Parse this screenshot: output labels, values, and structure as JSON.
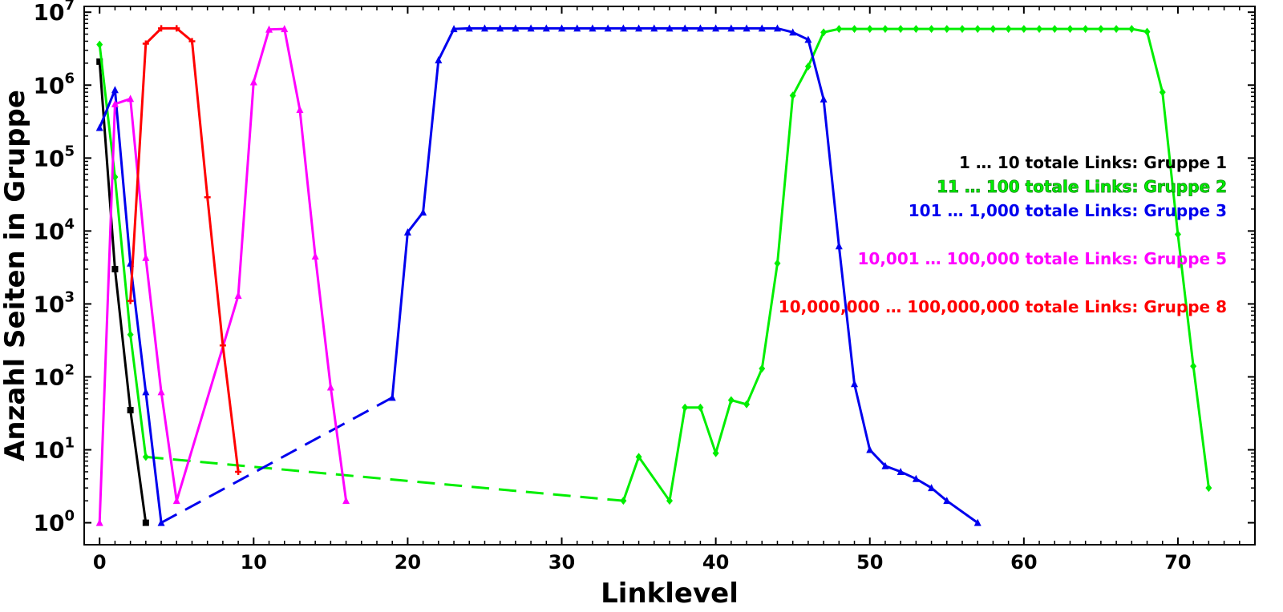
{
  "chart_data": {
    "type": "line",
    "title": "",
    "xlabel": "Linklevel",
    "ylabel": "Anzahl Seiten in Gruppe",
    "yscale": "log",
    "xlim": [
      -1,
      75
    ],
    "ylim": [
      0.5,
      12000000
    ],
    "grid": false,
    "legend_placement": "right",
    "x_ticks": [
      {
        "value": 0,
        "label": "0"
      },
      {
        "value": 10,
        "label": "10"
      },
      {
        "value": 20,
        "label": "20"
      },
      {
        "value": 30,
        "label": "30"
      },
      {
        "value": 40,
        "label": "40"
      },
      {
        "value": 50,
        "label": "50"
      },
      {
        "value": 60,
        "label": "60"
      },
      {
        "value": 70,
        "label": "70"
      }
    ],
    "y_ticks": [
      {
        "value": 1,
        "base": "10",
        "exp": "0"
      },
      {
        "value": 10,
        "base": "10",
        "exp": "1"
      },
      {
        "value": 100,
        "base": "10",
        "exp": "2"
      },
      {
        "value": 1000,
        "base": "10",
        "exp": "3"
      },
      {
        "value": 10000,
        "base": "10",
        "exp": "4"
      },
      {
        "value": 100000,
        "base": "10",
        "exp": "5"
      },
      {
        "value": 1000000,
        "base": "10",
        "exp": "6"
      },
      {
        "value": 10000000,
        "base": "10",
        "exp": "7"
      }
    ],
    "series": [
      {
        "name": "1 … 10 totale Links: Gruppe 1",
        "color": "#000000",
        "marker": "square",
        "points": [
          [
            0,
            2100000
          ],
          [
            1,
            3000
          ],
          [
            2,
            35
          ],
          [
            3,
            1
          ]
        ],
        "gaps": []
      },
      {
        "name": "11 … 100 totale Links: Gruppe 2",
        "color": "#00ee00",
        "marker": "diamond",
        "points": [
          [
            0,
            3600000
          ],
          [
            1,
            55000
          ],
          [
            2,
            380
          ],
          [
            3,
            8
          ],
          [
            34,
            2
          ],
          [
            35,
            8
          ],
          [
            37,
            2
          ],
          [
            38,
            38
          ],
          [
            39,
            38
          ],
          [
            40,
            9
          ],
          [
            41,
            48
          ],
          [
            42,
            42
          ],
          [
            43,
            130
          ],
          [
            44,
            3600
          ],
          [
            45,
            720000
          ],
          [
            46,
            1800000
          ],
          [
            47,
            5300000
          ],
          [
            48,
            5900000
          ],
          [
            49,
            5900000
          ],
          [
            50,
            5900000
          ],
          [
            51,
            5900000
          ],
          [
            52,
            5900000
          ],
          [
            53,
            5900000
          ],
          [
            54,
            5900000
          ],
          [
            55,
            5900000
          ],
          [
            56,
            5900000
          ],
          [
            57,
            5900000
          ],
          [
            58,
            5900000
          ],
          [
            59,
            5900000
          ],
          [
            60,
            5900000
          ],
          [
            61,
            5900000
          ],
          [
            62,
            5900000
          ],
          [
            63,
            5900000
          ],
          [
            64,
            5900000
          ],
          [
            65,
            5900000
          ],
          [
            66,
            5900000
          ],
          [
            67,
            5900000
          ],
          [
            68,
            5400000
          ],
          [
            69,
            800000
          ],
          [
            70,
            9000
          ],
          [
            71,
            140
          ],
          [
            72,
            3
          ]
        ],
        "gaps": [
          [
            [
              3,
              8
            ],
            [
              34,
              2
            ]
          ]
        ]
      },
      {
        "name": "101 … 1,000 totale Links: Gruppe 3",
        "color": "#0000ee",
        "marker": "triangle",
        "points": [
          [
            0,
            260000
          ],
          [
            1,
            860000
          ],
          [
            2,
            3600
          ],
          [
            3,
            62
          ],
          [
            4,
            1
          ],
          [
            19,
            52
          ],
          [
            20,
            9600
          ],
          [
            21,
            18000
          ],
          [
            22,
            2200000
          ],
          [
            23,
            5900000
          ],
          [
            24,
            6000000
          ],
          [
            25,
            6000000
          ],
          [
            26,
            6000000
          ],
          [
            27,
            6000000
          ],
          [
            28,
            6000000
          ],
          [
            29,
            6000000
          ],
          [
            30,
            6000000
          ],
          [
            31,
            6000000
          ],
          [
            32,
            6000000
          ],
          [
            33,
            6000000
          ],
          [
            34,
            6000000
          ],
          [
            35,
            6000000
          ],
          [
            36,
            6000000
          ],
          [
            37,
            6000000
          ],
          [
            38,
            6000000
          ],
          [
            39,
            6000000
          ],
          [
            40,
            6000000
          ],
          [
            41,
            6000000
          ],
          [
            42,
            6000000
          ],
          [
            43,
            6000000
          ],
          [
            44,
            6000000
          ],
          [
            45,
            5300000
          ],
          [
            46,
            4200000
          ],
          [
            47,
            640000
          ],
          [
            48,
            6200
          ],
          [
            49,
            80
          ],
          [
            50,
            10
          ],
          [
            51,
            6
          ],
          [
            52,
            5
          ],
          [
            53,
            4
          ],
          [
            54,
            3
          ],
          [
            55,
            2
          ],
          [
            57,
            1
          ]
        ],
        "gaps": [
          [
            [
              4,
              1
            ],
            [
              19,
              52
            ]
          ]
        ]
      },
      {
        "name": "10,001 … 100,000 totale Links: Gruppe 5",
        "color": "#ff00ff",
        "marker": "triangle",
        "points": [
          [
            0,
            1
          ],
          [
            1,
            550000
          ],
          [
            2,
            650000
          ],
          [
            3,
            4300
          ],
          [
            4,
            62
          ],
          [
            5,
            2
          ],
          [
            9,
            1300
          ],
          [
            10,
            1100000
          ],
          [
            11,
            5800000
          ],
          [
            12,
            5900000
          ],
          [
            13,
            460000
          ],
          [
            14,
            4500
          ],
          [
            15,
            72
          ],
          [
            16,
            2
          ]
        ],
        "gaps": []
      },
      {
        "name": "10,000,000 … 100,000,000 totale Links: Gruppe 8",
        "color": "#ff0000",
        "marker": "plus",
        "points": [
          [
            2,
            1100
          ],
          [
            3,
            3700000
          ],
          [
            4,
            6000000
          ],
          [
            5,
            6000000
          ],
          [
            6,
            4000000
          ],
          [
            7,
            29000
          ],
          [
            8,
            270
          ],
          [
            9,
            5
          ]
        ],
        "gaps": []
      }
    ]
  }
}
